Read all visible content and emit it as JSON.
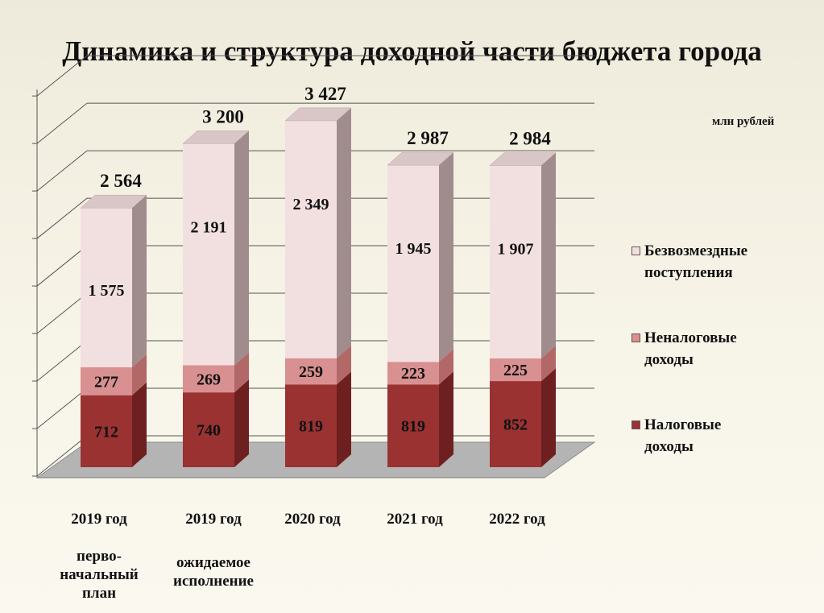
{
  "chart_data": {
    "type": "bar",
    "stacked": true,
    "title": "Динамика и структура доходной части бюджета города",
    "units": "млн рублей",
    "categories": [
      {
        "label": "2019 год",
        "sub": "перво-\nначальный\nплан"
      },
      {
        "label": "2019 год",
        "sub": "ожидаемое\nисполнение"
      },
      {
        "label": "2020 год",
        "sub": ""
      },
      {
        "label": "2021 год",
        "sub": ""
      },
      {
        "label": "2022 год",
        "sub": ""
      }
    ],
    "series": [
      {
        "name": "Налоговые доходы",
        "values": [
          712,
          740,
          819,
          819,
          852
        ],
        "labels": [
          "712",
          "740",
          "819",
          "819",
          "852"
        ],
        "color": "#9a3232"
      },
      {
        "name": "Неналоговые доходы",
        "values": [
          277,
          269,
          259,
          223,
          225
        ],
        "labels": [
          "277",
          "269",
          "259",
          "223",
          "225"
        ],
        "color": "#d99090"
      },
      {
        "name": "Безвозмездные поступления",
        "values": [
          1575,
          2191,
          2349,
          1945,
          1907
        ],
        "labels": [
          "1 575",
          "2 191",
          "2 349",
          "1 945",
          "1 907"
        ],
        "color": "#f0dfdf"
      }
    ],
    "totals": [
      2564,
      3200,
      3427,
      2987,
      2984
    ],
    "total_labels": [
      "2 564",
      "3 200",
      "3 427",
      "2 987",
      "2 984"
    ],
    "grid": true,
    "legend_position": "right",
    "legend_order": [
      "Безвозмездные поступления",
      "Неналоговые доходы",
      "Налоговые доходы"
    ],
    "legend_labels": [
      "Безвозмездные\nпоступления",
      "Неналоговые\nдоходы",
      "Налоговые\nдоходы"
    ]
  }
}
